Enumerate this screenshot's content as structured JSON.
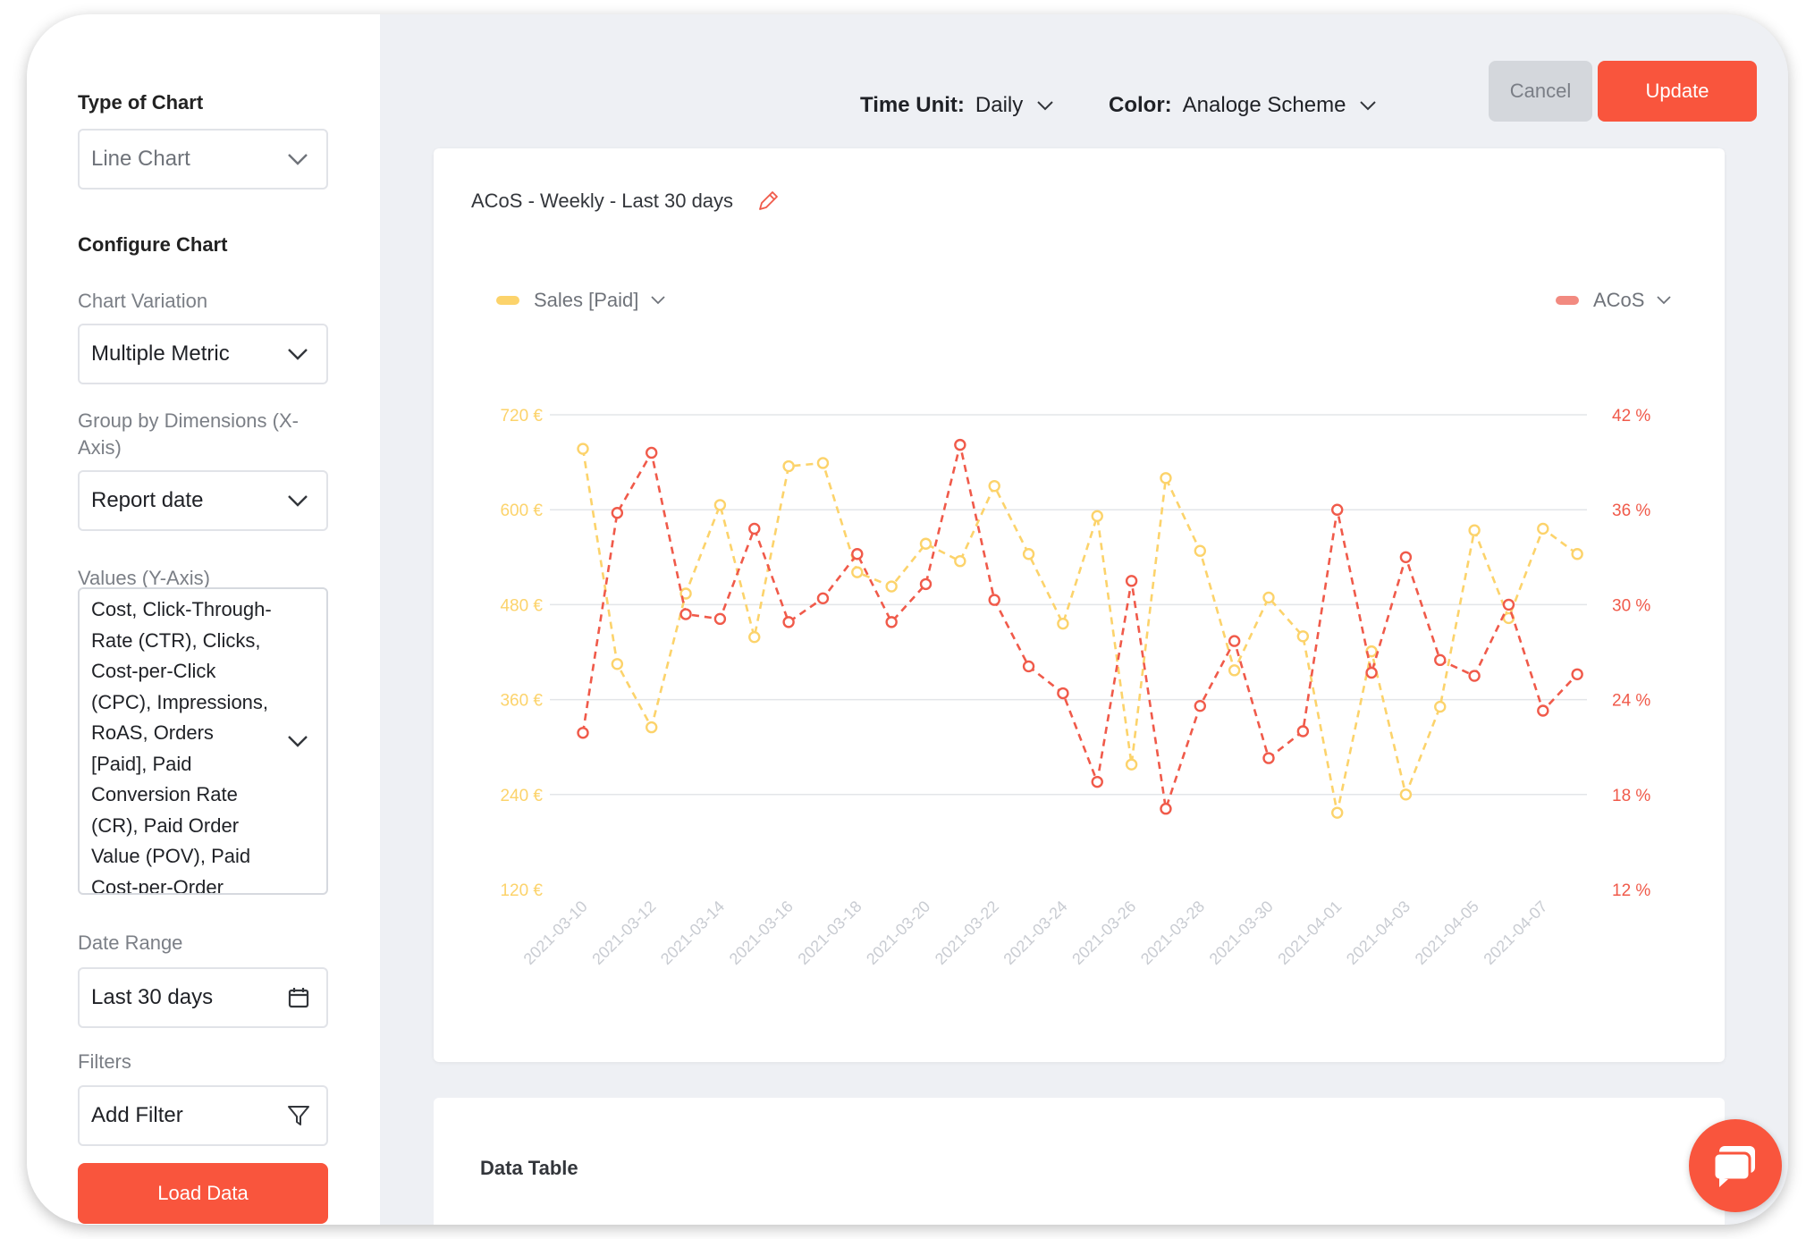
{
  "sidebar": {
    "type_of_chart": {
      "title": "Type of Chart",
      "value": "Line Chart"
    },
    "configure_chart": {
      "title": "Configure Chart"
    },
    "chart_variation": {
      "label": "Chart Variation",
      "value": "Multiple Metric"
    },
    "group_by": {
      "label": "Group by Dimensions (X-Axis)",
      "value": "Report date"
    },
    "values": {
      "label": "Values (Y-Axis)",
      "value": "Cost, Click-Through-Rate (CTR), Clicks, Cost-per-Click (CPC), Impressions, RoAS, Orders [Paid], Paid Conversion Rate (CR), Paid Order Value (POV), Paid Cost-per-Order"
    },
    "date_range": {
      "label": "Date Range",
      "value": "Last 30 days"
    },
    "filters": {
      "label": "Filters",
      "value": "Add Filter"
    },
    "load_button": "Load Data"
  },
  "toolbar": {
    "time_unit": {
      "label": "Time Unit:",
      "value": "Daily"
    },
    "color": {
      "label": "Color:",
      "value": "Analoge Scheme"
    },
    "cancel": "Cancel",
    "update": "Update"
  },
  "chart_card": {
    "title": "ACoS - Weekly - Last 30 days"
  },
  "data_table": {
    "title": "Data Table"
  },
  "colors": {
    "accent": "#f9553d",
    "sales": "#fcd36b",
    "acos": "#f05a4a"
  },
  "chart_data": {
    "type": "line",
    "x": [
      "2021-03-10",
      "2021-03-11",
      "2021-03-12",
      "2021-03-13",
      "2021-03-14",
      "2021-03-15",
      "2021-03-16",
      "2021-03-17",
      "2021-03-18",
      "2021-03-19",
      "2021-03-20",
      "2021-03-21",
      "2021-03-22",
      "2021-03-23",
      "2021-03-24",
      "2021-03-25",
      "2021-03-26",
      "2021-03-27",
      "2021-03-28",
      "2021-03-29",
      "2021-03-30",
      "2021-03-31",
      "2021-04-01",
      "2021-04-02",
      "2021-04-03",
      "2021-04-04",
      "2021-04-05",
      "2021-04-06",
      "2021-04-07",
      "2021-04-08"
    ],
    "x_tick_labels": [
      "2021-03-10",
      "2021-03-12",
      "2021-03-14",
      "2021-03-16",
      "2021-03-18",
      "2021-03-20",
      "2021-03-22",
      "2021-03-24",
      "2021-03-26",
      "2021-03-28",
      "2021-03-30",
      "2021-04-01",
      "2021-04-03",
      "2021-04-05",
      "2021-04-07"
    ],
    "series": [
      {
        "name": "Sales [Paid]",
        "axis": "left",
        "color": "#fcd36b",
        "values": [
          677,
          405,
          325,
          494,
          606,
          439,
          655,
          659,
          521,
          503,
          557,
          535,
          630,
          544,
          456,
          592,
          278,
          640,
          548,
          397,
          489,
          440,
          217,
          421,
          240,
          351,
          574,
          463,
          576,
          544
        ]
      },
      {
        "name": "ACoS",
        "axis": "right",
        "color": "#f05a4a",
        "values": [
          21.9,
          35.8,
          39.6,
          29.4,
          29.1,
          34.8,
          28.9,
          30.4,
          33.2,
          28.9,
          31.3,
          40.1,
          30.3,
          26.1,
          24.4,
          18.8,
          31.5,
          17.1,
          23.6,
          27.7,
          20.3,
          22.0,
          36.0,
          25.7,
          33.0,
          26.5,
          25.5,
          30.0,
          23.3,
          25.6
        ]
      }
    ],
    "y_left": {
      "ticks": [
        "720 €",
        "600 €",
        "480 €",
        "360 €",
        "240 €",
        "120 €"
      ],
      "range": [
        120,
        720
      ]
    },
    "y_right": {
      "ticks": [
        "42 %",
        "36 %",
        "30 %",
        "24 %",
        "18 %",
        "12 %"
      ],
      "range": [
        12,
        42
      ]
    },
    "grid": true,
    "legend": [
      "Sales [Paid]",
      "ACoS"
    ]
  }
}
